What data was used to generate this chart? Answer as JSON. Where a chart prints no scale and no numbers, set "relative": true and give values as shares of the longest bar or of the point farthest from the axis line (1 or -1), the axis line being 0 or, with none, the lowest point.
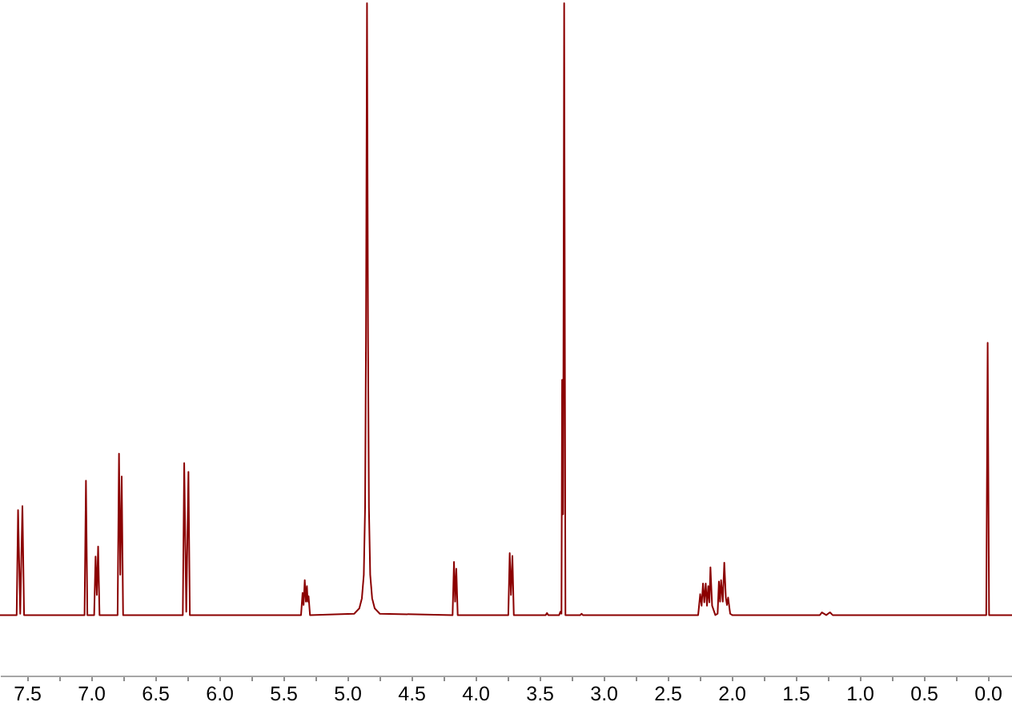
{
  "chart_data": {
    "type": "line",
    "relative": true,
    "xlim": [
      7.71,
      -0.19
    ],
    "xticks": [
      7.5,
      {
        "value": 7.25,
        "label": null
      },
      {
        "value": 7,
        "label": "7.0"
      },
      {
        "value": 6.75,
        "label": null
      },
      6.5,
      {
        "value": 6.25,
        "label": null
      },
      {
        "value": 6,
        "label": "6.0"
      },
      {
        "value": 5.75,
        "label": null
      },
      5.5,
      {
        "value": 5.25,
        "label": null
      },
      {
        "value": 5,
        "label": "5.0"
      },
      {
        "value": 4.75,
        "label": null
      },
      4.5,
      {
        "value": 4.25,
        "label": null
      },
      {
        "value": 4,
        "label": "4.0"
      },
      {
        "value": 3.75,
        "label": null
      },
      3.5,
      {
        "value": 3.25,
        "label": null
      },
      {
        "value": 3,
        "label": "3.0"
      },
      {
        "value": 2.75,
        "label": null
      },
      2.5,
      {
        "value": 2.25,
        "label": null
      },
      {
        "value": 2,
        "label": "2.0"
      },
      {
        "value": 1.75,
        "label": null
      },
      1.5,
      {
        "value": 1.25,
        "label": null
      },
      {
        "value": 1,
        "label": "1.0"
      },
      {
        "value": 0.75,
        "label": null
      },
      0.5,
      {
        "value": 0.25,
        "label": null
      },
      {
        "value": 0,
        "label": "0.0"
      }
    ],
    "x": [
      7.71,
      7.6,
      7.58,
      7.569,
      7.552,
      7.535,
      7.522,
      7.05,
      7.039,
      7.028,
      6.975,
      6.964,
      6.954,
      6.944,
      6.933,
      6.792,
      6.781,
      6.771,
      6.76,
      6.749,
      6.283,
      6.272,
      6.256,
      6.239,
      6.228,
      5.36,
      5.348,
      5.34,
      5.331,
      5.322,
      5.314,
      5.308,
      5.301,
      5.29,
      4.945,
      4.905,
      4.885,
      4.87,
      4.86,
      4.853,
      4.845,
      4.837,
      4.83,
      4.82,
      4.805,
      4.785,
      4.745,
      4.177,
      4.166,
      4.157,
      4.148,
      4.137,
      3.742,
      3.731,
      3.721,
      3.71,
      3.699,
      3.45,
      3.44,
      3.43,
      3.345,
      3.335,
      3.327,
      3.322,
      3.314,
      3.306,
      3.296,
      3.18,
      3.17,
      3.16,
      2.26,
      2.244,
      2.233,
      2.222,
      2.212,
      2.201,
      2.191,
      2.181,
      2.172,
      2.164,
      2.151,
      2.126,
      2.108,
      2.098,
      2.089,
      2.081,
      2.068,
      2.056,
      2.044,
      2.035,
      2.026,
      2.01,
      1.994,
      1.31,
      1.294,
      1.26,
      1.231,
      1.21,
      0.011,
      0,
      -0.011,
      -0.19
    ],
    "series": [
      {
        "color": "#8b0000",
        "values": [
          0.09,
          0.09,
          0.09,
          0.246,
          0.092,
          0.252,
          0.09,
          0.09,
          0.29,
          0.09,
          0.09,
          0.177,
          0.12,
          0.192,
          0.09,
          0.09,
          0.33,
          0.15,
          0.296,
          0.09,
          0.09,
          0.316,
          0.095,
          0.303,
          0.09,
          0.09,
          0.123,
          0.105,
          0.142,
          0.11,
          0.133,
          0.11,
          0.118,
          0.09,
          0.092,
          0.1,
          0.115,
          0.15,
          0.25,
          0.5,
          1.0,
          0.5,
          0.25,
          0.15,
          0.115,
          0.1,
          0.092,
          0.09,
          0.169,
          0.11,
          0.159,
          0.09,
          0.09,
          0.182,
          0.12,
          0.178,
          0.09,
          0.09,
          0.093,
          0.09,
          0.09,
          0.095,
          0.092,
          0.44,
          0.24,
          1.0,
          0.09,
          0.09,
          0.092,
          0.09,
          0.09,
          0.121,
          0.104,
          0.137,
          0.109,
          0.137,
          0.104,
          0.133,
          0.109,
          0.161,
          0.104,
          0.09,
          0.092,
          0.14,
          0.11,
          0.142,
          0.11,
          0.168,
          0.116,
          0.105,
          0.116,
          0.092,
          0.09,
          0.09,
          0.094,
          0.09,
          0.094,
          0.09,
          0.09,
          0.495,
          0.09,
          0.09
        ]
      }
    ]
  }
}
